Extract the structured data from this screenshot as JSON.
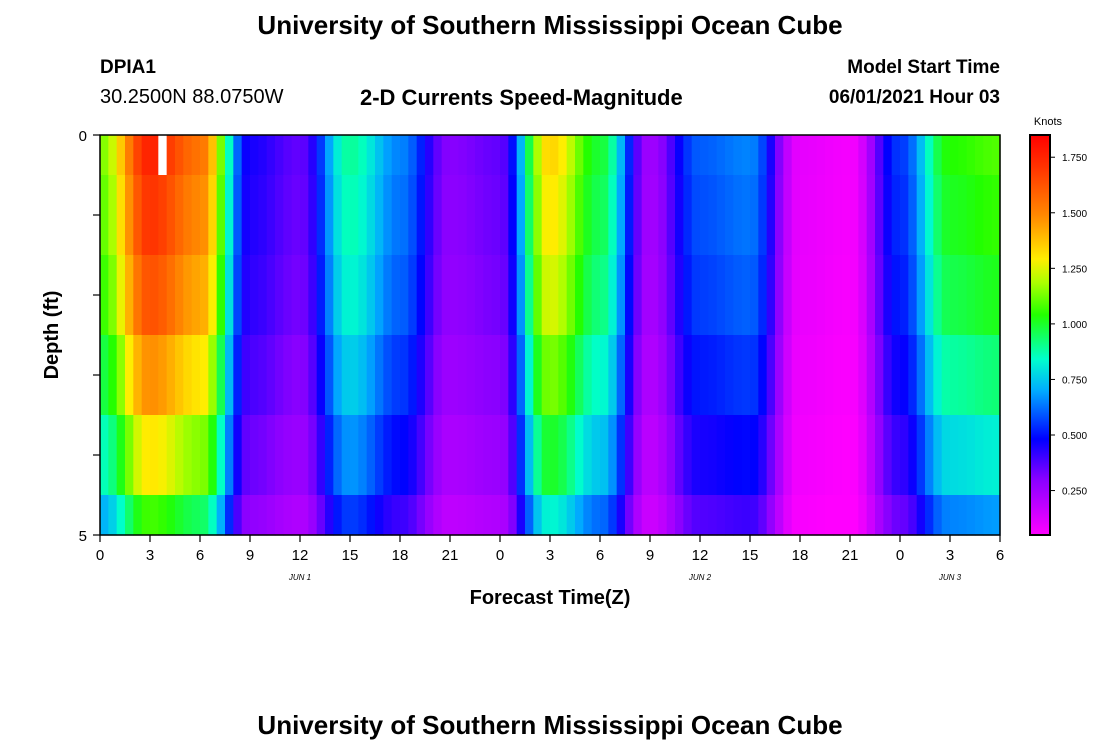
{
  "header": {
    "title": "University of Southern Mississippi Ocean Cube",
    "station_id": "DPIA1",
    "station_coords": "30.2500N  88.0750W",
    "subtitle": "2-D Currents Speed-Magnitude",
    "model_start_label": "Model Start Time",
    "model_start_value": "06/01/2021 Hour 03"
  },
  "footer": {
    "title": "University of Southern Mississippi Ocean Cube"
  },
  "chart_data": {
    "type": "heatmap",
    "title": "2-D Currents Speed-Magnitude",
    "xlabel": "Forecast Time(Z)",
    "ylabel": "Depth (ft)",
    "x_tick_labels": [
      "0",
      "3",
      "6",
      "9",
      "12",
      "15",
      "18",
      "21",
      "0",
      "3",
      "6",
      "9",
      "12",
      "15",
      "18",
      "21",
      "0",
      "3",
      "6"
    ],
    "x_range_hours": [
      0,
      54
    ],
    "day_labels": [
      {
        "text": "JUN 1",
        "hour": 12
      },
      {
        "text": "JUN 2",
        "hour": 36
      },
      {
        "text": "JUN 3",
        "hour": 51
      }
    ],
    "y_tick_labels": [
      "0",
      "5"
    ],
    "y_range_ft": [
      0,
      5
    ],
    "colorbar": {
      "unit": "Knots",
      "tick_labels": [
        "0.250",
        "0.500",
        "0.750",
        "1.000",
        "1.250",
        "1.500",
        "1.750"
      ],
      "range": [
        0.05,
        1.85
      ]
    },
    "depth_layers_ft": [
      0.25,
      1.25,
      2.25,
      3.25,
      4.25,
      4.75
    ],
    "hours": [
      0,
      3,
      6,
      9,
      12,
      15,
      18,
      21,
      24,
      27,
      30,
      33,
      36,
      39,
      42,
      45,
      48,
      51,
      54
    ],
    "speed_profile_knots": [
      1.15,
      1.75,
      1.55,
      0.45,
      0.35,
      0.9,
      0.65,
      0.3,
      0.35,
      1.35,
      1.0,
      0.25,
      0.6,
      0.65,
      0.1,
      0.07,
      0.55,
      1.05,
      1.1
    ],
    "depth_factor": [
      1.0,
      0.97,
      0.93,
      0.85,
      0.75,
      0.62
    ],
    "missing_cell": {
      "hour": 3.5,
      "depth_layer": 0
    }
  }
}
